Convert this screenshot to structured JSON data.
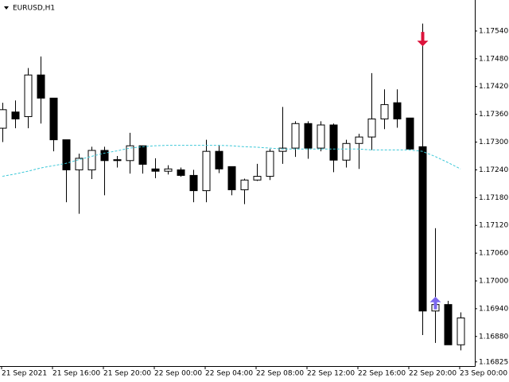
{
  "chart_data": {
    "type": "candlestick",
    "title": "EURUSD,H1",
    "categories": [
      "21 Sep 2021",
      null,
      null,
      null,
      "21 Sep 16:00",
      null,
      null,
      null,
      "21 Sep 20:00",
      null,
      null,
      null,
      "22 Sep 00:00",
      null,
      null,
      null,
      "22 Sep 04:00",
      null,
      null,
      null,
      "22 Sep 08:00",
      null,
      null,
      null,
      "22 Sep 12:00",
      null,
      null,
      null,
      "22 Sep 16:00",
      null,
      null,
      null,
      "22 Sep 20:00",
      null,
      null,
      null,
      "23 Sep 00:00"
    ],
    "open": [
      1.1733,
      1.17365,
      1.17355,
      1.17445,
      1.17395,
      1.17305,
      1.1724,
      1.1724,
      1.17282,
      1.17262,
      1.1726,
      1.17292,
      1.17242,
      1.17237,
      1.1724,
      1.17228,
      1.17195,
      1.1728,
      1.17247,
      1.17197,
      1.17218,
      1.17226,
      1.1728,
      1.17287,
      1.1734,
      1.17287,
      1.17337,
      1.17261,
      1.17297,
      1.17311,
      1.1735,
      1.17385,
      1.17352,
      1.1729,
      1.16935,
      1.16949,
      1.16862
    ],
    "high": [
      1.17385,
      1.1739,
      1.1746,
      1.17485,
      1.17395,
      1.17305,
      1.17275,
      1.1729,
      1.1729,
      1.1727,
      1.1732,
      1.17292,
      1.17265,
      1.1725,
      1.17245,
      1.1724,
      1.17305,
      1.17292,
      1.17247,
      1.17221,
      1.17253,
      1.17285,
      1.17376,
      1.17345,
      1.17345,
      1.17345,
      1.1734,
      1.17305,
      1.17318,
      1.17449,
      1.17414,
      1.17414,
      1.17352,
      1.17556,
      1.17114,
      1.16957,
      1.16932
    ],
    "low": [
      1.173,
      1.1733,
      1.1733,
      1.1734,
      1.1728,
      1.1717,
      1.17145,
      1.1722,
      1.17185,
      1.17245,
      1.17232,
      1.17232,
      1.17222,
      1.1723,
      1.17225,
      1.1717,
      1.1717,
      1.17233,
      1.17185,
      1.17166,
      1.17216,
      1.17218,
      1.17253,
      1.17268,
      1.17264,
      1.1728,
      1.17235,
      1.17245,
      1.17242,
      1.17283,
      1.17328,
      1.17331,
      1.17283,
      1.16883,
      1.16866,
      1.16862,
      1.1685
    ],
    "close": [
      1.1737,
      1.1735,
      1.17445,
      1.17395,
      1.17305,
      1.1724,
      1.17265,
      1.17282,
      1.1726,
      1.1726,
      1.17292,
      1.17252,
      1.17237,
      1.17242,
      1.17228,
      1.17195,
      1.1728,
      1.17242,
      1.17197,
      1.17218,
      1.17226,
      1.1728,
      1.17287,
      1.1734,
      1.17287,
      1.17337,
      1.17261,
      1.17297,
      1.17311,
      1.1735,
      1.17381,
      1.1735,
      1.17285,
      1.16935,
      1.16949,
      1.16862,
      1.1692
    ],
    "up_color": "#ffffff",
    "down_color": "#000000",
    "moving_average": {
      "color": "#3cc8d8",
      "values": [
        1.17226,
        1.17231,
        1.17237,
        1.17244,
        1.17249,
        1.17254,
        1.17262,
        1.17269,
        1.17276,
        1.17281,
        1.17287,
        1.1729,
        1.17292,
        1.17293,
        1.17293,
        1.17293,
        1.17293,
        1.17293,
        1.17292,
        1.1729,
        1.17289,
        1.17287,
        1.17285,
        1.17285,
        1.17285,
        1.17285,
        1.17285,
        1.17285,
        1.17285,
        1.17283,
        1.17283,
        1.17283,
        1.17283,
        1.1728,
        1.17269,
        1.17256,
        1.17242
      ]
    },
    "arrows": [
      {
        "index": 33,
        "value": 1.17507,
        "direction": "down",
        "color": "#dc143c"
      },
      {
        "index": 34,
        "value": 1.16966,
        "direction": "up",
        "color": "#7b68ee"
      }
    ],
    "ylim": [
      1.16816,
      1.17607
    ],
    "yticks": [
      {
        "value": 1.1754,
        "label": "1.17540"
      },
      {
        "value": 1.1748,
        "label": "1.17480"
      },
      {
        "value": 1.1742,
        "label": "1.17420"
      },
      {
        "value": 1.1736,
        "label": "1.17360"
      },
      {
        "value": 1.173,
        "label": "1.17300"
      },
      {
        "value": 1.1724,
        "label": "1.17240"
      },
      {
        "value": 1.1718,
        "label": "1.17180"
      },
      {
        "value": 1.1712,
        "label": "1.17120"
      },
      {
        "value": 1.1706,
        "label": "1.17060"
      },
      {
        "value": 1.17,
        "label": "1.17000"
      },
      {
        "value": 1.1694,
        "label": "1.16940"
      },
      {
        "value": 1.1688,
        "label": "1.16880"
      },
      {
        "value": 1.16825,
        "label": "1.16825"
      }
    ],
    "grid": false
  }
}
